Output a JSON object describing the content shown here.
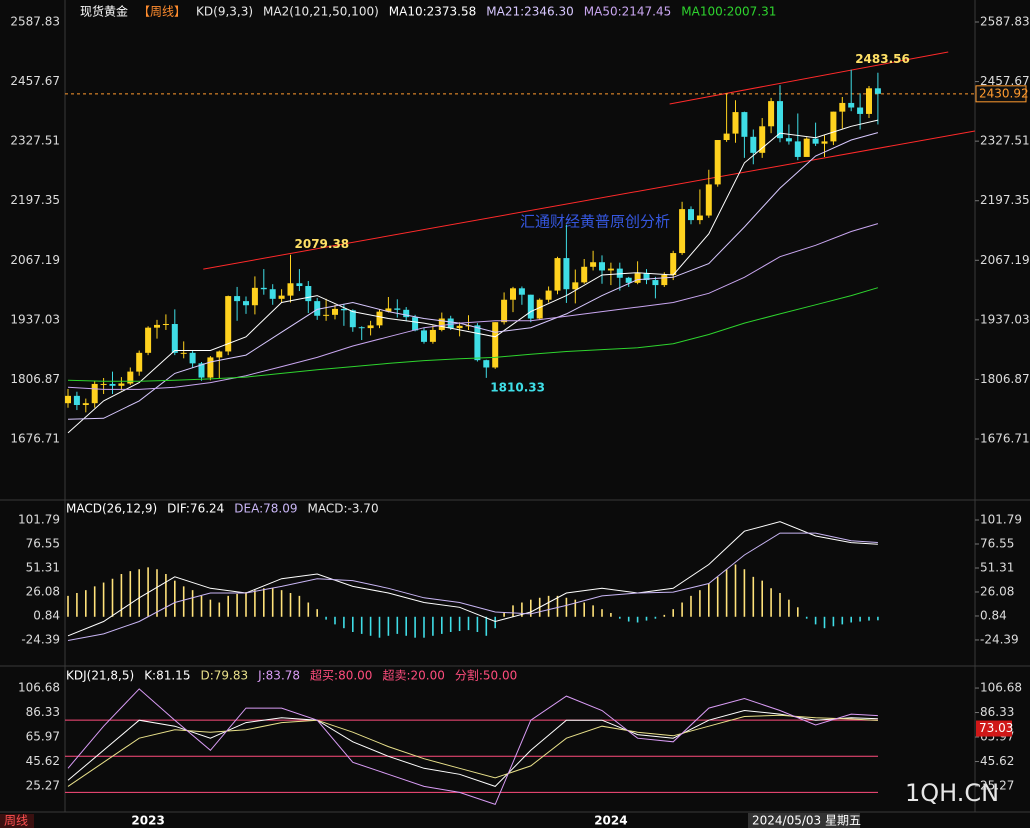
{
  "chart_data": [
    {
      "type": "candlestick",
      "title": "现货黄金",
      "period": "【周线】",
      "indicators": [
        "KD(9,3,3)",
        "MA2(10,21,50,100)"
      ],
      "categories": [
        null,
        null,
        null,
        null,
        null,
        null,
        null,
        null,
        null,
        "2023",
        null,
        null,
        null,
        null,
        null,
        null,
        null,
        null,
        null,
        null,
        null,
        null,
        null,
        null,
        null,
        null,
        null,
        null,
        null,
        null,
        null,
        null,
        null,
        null,
        null,
        null,
        null,
        null,
        null,
        null,
        null,
        null,
        null,
        null,
        null,
        null,
        null,
        null,
        null,
        null,
        null,
        null,
        null,
        null,
        null,
        null,
        null,
        null,
        null,
        null,
        null,
        "2024",
        null,
        null,
        null,
        null,
        null,
        null,
        null,
        null,
        null,
        null,
        null,
        null,
        null,
        null,
        null,
        null,
        null,
        null,
        null,
        null,
        null,
        null,
        null,
        null,
        null,
        null,
        null,
        null,
        null,
        null
      ],
      "open": [
        1755,
        1771,
        1751,
        1755,
        1797,
        1797,
        1793,
        1798,
        1824,
        1865,
        1920,
        1926,
        1928,
        1865,
        1865,
        1842,
        1811,
        1855,
        1868,
        1989,
        1978,
        1969,
        2007,
        2004,
        1983,
        1990,
        2017,
        2011,
        1978,
        1946,
        1948,
        1961,
        1958,
        1921,
        1919,
        1925,
        1955,
        1962,
        1959,
        1943,
        1914,
        1889,
        1915,
        1940,
        1919,
        1924,
        1925,
        1849,
        1833,
        1932,
        1981,
        2006,
        1992,
        1940,
        1981,
        2001,
        2072,
        2004,
        2019,
        2053,
        2063,
        2045,
        2049,
        2029,
        2018,
        2039,
        2024,
        2013,
        2035,
        2083,
        2179,
        2155,
        2165,
        2233,
        2330,
        2344,
        2391,
        2337,
        2302,
        2360,
        2415,
        2334,
        2327,
        2293,
        2333,
        2322,
        2327,
        2392,
        2411,
        2401,
        2387,
        2443
      ],
      "high": [
        1786,
        1780,
        1765,
        1804,
        1810,
        1824,
        1812,
        1833,
        1870,
        1923,
        1937,
        1949,
        1960,
        1890,
        1870,
        1845,
        1858,
        1870,
        1990,
        2009,
        1988,
        2032,
        2048,
        2015,
        2004,
        2079.38,
        2048,
        2022,
        1985,
        1983,
        1970,
        1972,
        1960,
        1923,
        1935,
        1960,
        1987,
        1982,
        1965,
        1948,
        1920,
        1925,
        1953,
        1946,
        1932,
        1947,
        1930,
        1850,
        1932,
        1997,
        2009,
        2010,
        1992,
        1984,
        2010,
        2075,
        2145,
        2047,
        2070,
        2088,
        2078,
        2062,
        2062,
        2031,
        2065,
        2048,
        2031,
        2041,
        2088,
        2195,
        2185,
        2222,
        2265,
        2330,
        2432,
        2417,
        2392,
        2353,
        2378,
        2422,
        2450,
        2364,
        2388,
        2336,
        2368,
        2340,
        2392,
        2424,
        2483.56,
        2432,
        2448,
        2477
      ],
      "low": [
        1745,
        1740,
        1735,
        1745,
        1775,
        1775,
        1783,
        1795,
        1815,
        1860,
        1896,
        1915,
        1860,
        1853,
        1833,
        1804,
        1805,
        1810,
        1860,
        1935,
        1950,
        1949,
        1992,
        1970,
        1975,
        1975,
        2000,
        1952,
        1937,
        1935,
        1938,
        1924,
        1911,
        1893,
        1903,
        1919,
        1953,
        1942,
        1934,
        1912,
        1885,
        1885,
        1912,
        1915,
        1901,
        1915,
        1846,
        1810.33,
        1830,
        1927,
        1954,
        1970,
        1932,
        1938,
        1975,
        1993,
        1974,
        1973,
        2016,
        2045,
        2016,
        2013,
        2001,
        2009,
        2015,
        2015,
        1984,
        2009,
        2024,
        2079,
        2146,
        2146,
        2160,
        2228,
        2326,
        2324,
        2291,
        2277,
        2291,
        2345,
        2325,
        2320,
        2286,
        2299,
        2317,
        2293,
        2319,
        2355,
        2393,
        2353,
        2378,
        2364
      ],
      "close": [
        1771,
        1751,
        1755,
        1797,
        1797,
        1793,
        1798,
        1824,
        1865,
        1920,
        1926,
        1928,
        1865,
        1865,
        1842,
        1811,
        1855,
        1868,
        1989,
        1978,
        1969,
        2007,
        2004,
        1983,
        1990,
        2017,
        2011,
        1978,
        1946,
        1948,
        1961,
        1958,
        1921,
        1919,
        1925,
        1955,
        1962,
        1959,
        1943,
        1914,
        1889,
        1915,
        1940,
        1919,
        1924,
        1925,
        1849,
        1833,
        1932,
        1981,
        2006,
        1992,
        1940,
        1981,
        2001,
        2072,
        2004,
        2019,
        2053,
        2063,
        2045,
        2049,
        2029,
        2018,
        2039,
        2024,
        2013,
        2035,
        2083,
        2179,
        2155,
        2165,
        2233,
        2330,
        2344,
        2391,
        2337,
        2302,
        2360,
        2415,
        2334,
        2327,
        2293,
        2333,
        2322,
        2327,
        2392,
        2411,
        2401,
        2387,
        2443,
        2431
      ],
      "up_color": "#ffd21f",
      "down_color": "#3fdde6",
      "ylim": [
        1565.3,
        2609.7
      ],
      "yticks": [
        2587.83,
        2457.67,
        2327.51,
        2197.35,
        2067.19,
        1937.03,
        1806.87,
        1676.71
      ],
      "series": [
        {
          "name": "MA10:2373.58",
          "color": "#ffffff",
          "x": [
            0,
            4,
            8,
            12,
            16,
            20,
            24,
            28,
            32,
            36,
            40,
            44,
            48,
            52,
            56,
            60,
            64,
            68,
            72,
            76,
            80,
            84,
            88,
            91
          ],
          "values": [
            1690,
            1760,
            1800,
            1870,
            1870,
            1900,
            1975,
            1990,
            1955,
            1940,
            1930,
            1915,
            1900,
            1955,
            1990,
            2035,
            2040,
            2035,
            2125,
            2280,
            2345,
            2335,
            2360,
            2373.58
          ]
        },
        {
          "name": "MA21:2346.30",
          "color": "#d8c8ff",
          "x": [
            0,
            4,
            8,
            12,
            16,
            20,
            24,
            28,
            32,
            36,
            40,
            44,
            48,
            52,
            56,
            60,
            64,
            68,
            72,
            76,
            80,
            84,
            88,
            91
          ],
          "values": [
            1720,
            1722,
            1760,
            1820,
            1845,
            1860,
            1910,
            1960,
            1975,
            1955,
            1940,
            1930,
            1910,
            1920,
            1950,
            1990,
            2025,
            2030,
            2060,
            2140,
            2225,
            2295,
            2330,
            2346.3
          ]
        },
        {
          "name": "MA50:2147.45",
          "color": "#c9a6f0",
          "x": [
            0,
            4,
            8,
            12,
            16,
            20,
            24,
            28,
            32,
            36,
            40,
            44,
            48,
            52,
            56,
            60,
            64,
            68,
            72,
            76,
            80,
            84,
            88,
            91
          ],
          "values": [
            1790,
            1785,
            1785,
            1790,
            1800,
            1815,
            1835,
            1855,
            1880,
            1900,
            1920,
            1930,
            1935,
            1935,
            1945,
            1955,
            1965,
            1975,
            1995,
            2030,
            2075,
            2100,
            2130,
            2147.45
          ]
        },
        {
          "name": "MA100:2007.31",
          "color": "#2ed42e",
          "x": [
            0,
            4,
            8,
            12,
            16,
            20,
            24,
            28,
            32,
            36,
            40,
            44,
            48,
            52,
            56,
            60,
            64,
            68,
            72,
            76,
            80,
            84,
            88,
            91
          ],
          "values": [
            1805,
            1803,
            1803,
            1805,
            1808,
            1812,
            1820,
            1828,
            1835,
            1842,
            1848,
            1852,
            1855,
            1862,
            1868,
            1872,
            1876,
            1885,
            1905,
            1930,
            1950,
            1970,
            1990,
            2007.31
          ]
        }
      ],
      "last_price": 2430.92,
      "last_price_color": "#ff9a2e",
      "annotations": [
        {
          "text": "2079.38",
          "x": 25,
          "y": 2079.38
        },
        {
          "text": "1810.33",
          "x": 47,
          "y": 1810.33
        },
        {
          "text": "2483.56",
          "x": 88,
          "y": 2483.56
        }
      ],
      "trendlines": [
        {
          "x": [
            15.2,
            101.9
          ],
          "y": [
            2048,
            2349.7
          ]
        },
        {
          "x": [
            67.6,
            98.9
          ],
          "y": [
            2408.7,
            2522.3
          ]
        }
      ],
      "trend_color": "#ff2a2a",
      "watermark": "汇通财经黄普原创分析"
    },
    {
      "type": "macd",
      "title": "MACD(26,12,9)",
      "values": [
        22,
        25,
        28,
        32,
        36,
        40,
        45,
        48,
        50,
        52,
        50,
        45,
        38,
        32,
        28,
        22,
        18,
        15,
        22,
        24,
        26,
        28,
        30,
        30,
        28,
        25,
        22,
        15,
        8,
        -3,
        -8,
        -12,
        -16,
        -18,
        -20,
        -22,
        -20,
        -18,
        -20,
        -22,
        -22,
        -20,
        -18,
        -16,
        -15,
        -14,
        -16,
        -20,
        -12,
        5,
        12,
        15,
        18,
        20,
        22,
        22,
        20,
        18,
        15,
        12,
        8,
        4,
        -2,
        -5,
        -6,
        -4,
        -2,
        2,
        8,
        15,
        22,
        28,
        35,
        42,
        50,
        55,
        50,
        42,
        38,
        30,
        25,
        18,
        10,
        -2,
        -8,
        -12,
        -10,
        -8,
        -6,
        -5,
        -4,
        -3.7
      ],
      "up_color": "#ffe27a",
      "down_color": "#3fdde6",
      "ylim": [
        -40.2,
        110.2
      ],
      "yticks": [
        101.79,
        76.55,
        51.31,
        26.08,
        0.84,
        -24.39
      ],
      "series": [
        {
          "name": "DIF:76.24",
          "color": "#ffffff",
          "x": [
            0,
            4,
            8,
            12,
            16,
            20,
            24,
            28,
            32,
            36,
            40,
            44,
            48,
            52,
            56,
            60,
            64,
            68,
            72,
            76,
            80,
            84,
            88,
            91
          ],
          "values": [
            -20,
            -5,
            20,
            42,
            30,
            25,
            40,
            45,
            32,
            25,
            15,
            10,
            -5,
            5,
            25,
            30,
            25,
            30,
            55,
            90,
            100,
            85,
            78,
            76.24
          ]
        },
        {
          "name": "DEA:78.09",
          "color": "#c9b6f5",
          "x": [
            0,
            4,
            8,
            12,
            16,
            20,
            24,
            28,
            32,
            36,
            40,
            44,
            48,
            52,
            56,
            60,
            64,
            68,
            72,
            76,
            80,
            84,
            88,
            91
          ],
          "values": [
            -25,
            -18,
            -5,
            15,
            25,
            25,
            32,
            40,
            38,
            30,
            20,
            15,
            5,
            3,
            12,
            22,
            25,
            26,
            35,
            65,
            88,
            88,
            80,
            78.09
          ]
        }
      ],
      "label": "MACD:-3.70"
    },
    {
      "type": "kdj",
      "title": "KDJ(21,8,5)",
      "ylim": [
        3.7,
        111.7
      ],
      "yticks": [
        106.68,
        86.33,
        65.97,
        45.62,
        25.27
      ],
      "series": [
        {
          "name": "K:81.15",
          "color": "#ffffff",
          "x": [
            0,
            4,
            8,
            12,
            16,
            20,
            24,
            28,
            32,
            36,
            40,
            44,
            48,
            52,
            56,
            60,
            64,
            68,
            72,
            76,
            80,
            84,
            88,
            91
          ],
          "values": [
            30,
            55,
            80,
            75,
            65,
            78,
            82,
            80,
            62,
            50,
            40,
            35,
            25,
            55,
            80,
            80,
            68,
            65,
            80,
            88,
            85,
            80,
            82,
            81.15
          ]
        },
        {
          "name": "D:79.83",
          "color": "#e8e08a",
          "x": [
            0,
            4,
            8,
            12,
            16,
            20,
            24,
            28,
            32,
            36,
            40,
            44,
            48,
            52,
            56,
            60,
            64,
            68,
            72,
            76,
            80,
            84,
            88,
            91
          ],
          "values": [
            25,
            45,
            65,
            72,
            70,
            72,
            78,
            80,
            70,
            58,
            48,
            40,
            32,
            42,
            65,
            75,
            70,
            67,
            75,
            83,
            84,
            82,
            81,
            79.83
          ]
        },
        {
          "name": "J:83.78",
          "color": "#d99cf5",
          "x": [
            0,
            4,
            8,
            12,
            16,
            20,
            24,
            28,
            32,
            36,
            40,
            44,
            48,
            52,
            56,
            60,
            64,
            68,
            72,
            76,
            80,
            84,
            88,
            91
          ],
          "values": [
            40,
            75,
            106,
            80,
            55,
            90,
            90,
            80,
            45,
            35,
            25,
            20,
            10,
            80,
            100,
            88,
            65,
            62,
            90,
            98,
            88,
            76,
            85,
            83.78
          ]
        }
      ],
      "levels": [
        {
          "value": 80,
          "label": "超买:80.00"
        },
        {
          "value": 20,
          "label": "超卖:20.00"
        },
        {
          "value": 50,
          "label": "分割:50.00"
        }
      ],
      "level_color": "#ff4d7d",
      "cursor_value": 73.03
    }
  ],
  "footer": {
    "period": "周线",
    "date": "2024/05/03 星期五",
    "site": "1QH.CN"
  }
}
